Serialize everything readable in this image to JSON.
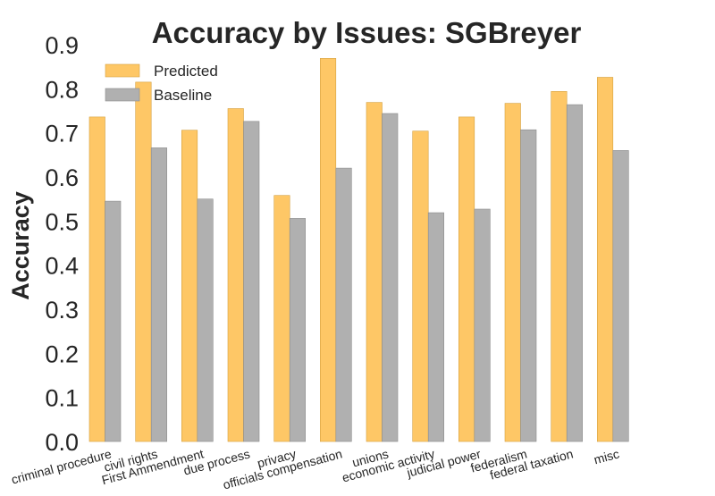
{
  "chart_data": {
    "type": "bar",
    "title": "Accuracy by Issues: SGBreyer",
    "xlabel": "",
    "ylabel": "Accuracy",
    "ylim": [
      0,
      0.9
    ],
    "yticks": [
      "0.0",
      "0.1",
      "0.2",
      "0.3",
      "0.4",
      "0.5",
      "0.6",
      "0.7",
      "0.8",
      "0.9"
    ],
    "grid": false,
    "legend_position": "top-left",
    "categories": [
      "criminal procedure",
      "civil rights",
      "First Ammendment",
      "due process",
      "privacy",
      "officials compensation",
      "unions",
      "economic activity",
      "judicial power",
      "federalism",
      "federal taxation",
      "misc"
    ],
    "series": [
      {
        "name": "Predicted",
        "color": "#fec766",
        "values": [
          0.736,
          0.815,
          0.706,
          0.755,
          0.558,
          0.869,
          0.769,
          0.704,
          0.736,
          0.767,
          0.794,
          0.826
        ]
      },
      {
        "name": "Baseline",
        "color": "#b0b0b0",
        "values": [
          0.545,
          0.666,
          0.55,
          0.726,
          0.506,
          0.62,
          0.744,
          0.519,
          0.527,
          0.707,
          0.764,
          0.66
        ]
      }
    ]
  }
}
